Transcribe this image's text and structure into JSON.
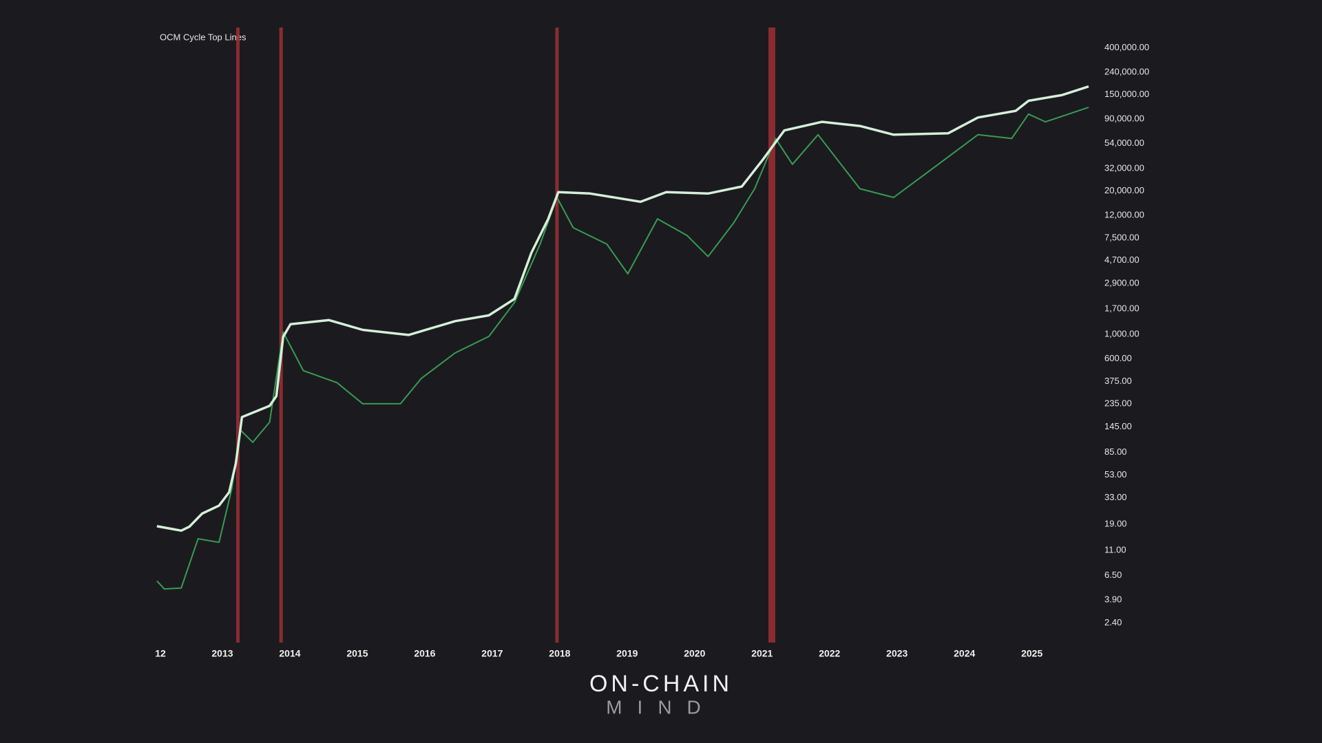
{
  "chart_data": {
    "type": "line",
    "title": "OCM Cycle Top Lines",
    "watermark": [
      "ON-CHAIN",
      "MIND"
    ],
    "log_scale": true,
    "grid": false,
    "xlim": [
      2012,
      2025.84
    ],
    "ylim": [
      1.6,
      610000
    ],
    "xticks": [
      {
        "value": 2012,
        "label": "12"
      },
      2013,
      2014,
      2015,
      2016,
      2017,
      2018,
      2019,
      2020,
      2021,
      2022,
      2023,
      2024,
      2025
    ],
    "yticks": [
      {
        "value": 400000,
        "label": "400,000.00"
      },
      {
        "value": 240000,
        "label": "240,000.00"
      },
      {
        "value": 150000,
        "label": "150,000.00"
      },
      {
        "value": 90000,
        "label": "90,000.00"
      },
      {
        "value": 54000,
        "label": "54,000.00"
      },
      {
        "value": 32000,
        "label": "32,000.00"
      },
      {
        "value": 20000,
        "label": "20,000.00"
      },
      {
        "value": 12000,
        "label": "12,000.00"
      },
      {
        "value": 7500,
        "label": "7,500.00"
      },
      {
        "value": 4700,
        "label": "4,700.00"
      },
      {
        "value": 2900,
        "label": "2,900.00"
      },
      {
        "value": 1700,
        "label": "1,700.00"
      },
      {
        "value": 1000,
        "label": "1,000.00"
      },
      {
        "value": 600,
        "label": "600.00"
      },
      {
        "value": 375,
        "label": "375.00"
      },
      {
        "value": 235,
        "label": "235.00"
      },
      {
        "value": 145,
        "label": "145.00"
      },
      {
        "value": 85,
        "label": "85.00"
      },
      {
        "value": 53,
        "label": "53.00"
      },
      {
        "value": 33,
        "label": "33.00"
      },
      {
        "value": 19,
        "label": "19.00"
      },
      {
        "value": 11,
        "label": "11.00"
      },
      {
        "value": 6.5,
        "label": "6.50"
      },
      {
        "value": 3.9,
        "label": "3.90"
      },
      {
        "value": 2.4,
        "label": "2.40"
      }
    ],
    "cycle_top_dates": [
      2013.23,
      2013.87,
      2017.96,
      2021.12,
      2021.17
    ],
    "band_color": "#9c2f36",
    "series": [
      {
        "color": "#3a9a55",
        "x": [
          2012.03,
          2012.14,
          2012.39,
          2012.64,
          2012.95,
          2013.14,
          2013.26,
          2013.45,
          2013.7,
          2013.9,
          2014.2,
          2014.7,
          2015.08,
          2015.64,
          2015.95,
          2016.45,
          2016.95,
          2017.33,
          2017.71,
          2017.96,
          2018.2,
          2018.7,
          2019.01,
          2019.45,
          2019.89,
          2020.2,
          2020.58,
          2020.89,
          2021.2,
          2021.45,
          2021.83,
          2022.45,
          2022.95,
          2023.45,
          2024.2,
          2024.7,
          2024.95,
          2025.2,
          2025.84
        ],
        "values": [
          5.8,
          4.9,
          5,
          14,
          13,
          40,
          137,
          105,
          160,
          1050,
          470,
          365,
          235,
          235,
          400,
          680,
          960,
          1950,
          6600,
          17500,
          9300,
          6600,
          3550,
          11200,
          7900,
          5100,
          10300,
          21000,
          60000,
          35000,
          65000,
          21000,
          17500,
          29500,
          65000,
          60000,
          100000,
          85000,
          115000
        ]
      },
      {
        "name": "OCM Cycle Top Lines",
        "color": "#d5efd9",
        "x": [
          2012.03,
          2012.39,
          2012.51,
          2012.7,
          2012.95,
          2013.1,
          2013.2,
          2013.29,
          2013.45,
          2013.7,
          2013.8,
          2013.9,
          2014.01,
          2014.58,
          2015.08,
          2015.76,
          2016.45,
          2016.95,
          2017.33,
          2017.58,
          2017.83,
          2017.98,
          2018.45,
          2019.2,
          2019.58,
          2020.2,
          2020.7,
          2021.01,
          2021.33,
          2021.89,
          2022.45,
          2022.95,
          2023.76,
          2024.2,
          2024.76,
          2024.95,
          2025.45,
          2025.84
        ],
        "values": [
          18.2,
          16.6,
          18,
          23.7,
          28,
          37,
          68,
          178,
          195,
          225,
          276,
          950,
          1240,
          1350,
          1100,
          990,
          1320,
          1490,
          2100,
          5500,
          11200,
          19600,
          19000,
          16000,
          19600,
          19000,
          22000,
          38500,
          71000,
          85000,
          78000,
          65000,
          67000,
          93000,
          107000,
          132000,
          149000,
          178000
        ]
      }
    ]
  }
}
